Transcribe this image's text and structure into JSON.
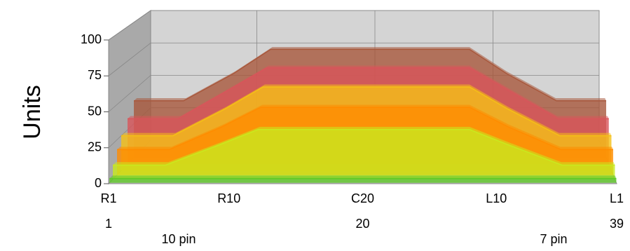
{
  "chart_data": {
    "type": "area3d",
    "ylabel": "Units",
    "x": [
      1,
      5,
      9,
      12,
      28,
      31,
      35,
      39
    ],
    "xlim": [
      1,
      39
    ],
    "xticks": [
      {
        "value": 1,
        "label": "R1"
      },
      {
        "value": 10,
        "label": "R10"
      },
      {
        "value": 20,
        "label": "C20"
      },
      {
        "value": 30,
        "label": "L10"
      },
      {
        "value": 39,
        "label": "L1"
      }
    ],
    "xticks2": [
      1,
      20,
      39
    ],
    "annotations": [
      "10 pin",
      "7 pin"
    ],
    "ylim": [
      0,
      100
    ],
    "yticks": [
      0,
      25,
      50,
      75,
      100
    ],
    "grid": true,
    "series": [
      {
        "color": "#5fc928",
        "values": [
          3,
          3,
          3,
          3,
          3,
          3,
          3,
          3
        ]
      },
      {
        "color": "#c8ea1e",
        "values": [
          10,
          10,
          24,
          35,
          35,
          24,
          10,
          10
        ]
      },
      {
        "color": "#ff8c00",
        "values": [
          18,
          18,
          34,
          48,
          48,
          34,
          18,
          18
        ]
      },
      {
        "color": "#f5c016",
        "values": [
          25,
          25,
          44,
          60,
          60,
          44,
          25,
          25
        ]
      },
      {
        "color": "#d8555a",
        "values": [
          33,
          33,
          54,
          70,
          70,
          54,
          33,
          33
        ]
      },
      {
        "color": "#a8583c",
        "values": [
          42,
          42,
          62,
          80,
          80,
          62,
          42,
          42
        ]
      }
    ]
  }
}
